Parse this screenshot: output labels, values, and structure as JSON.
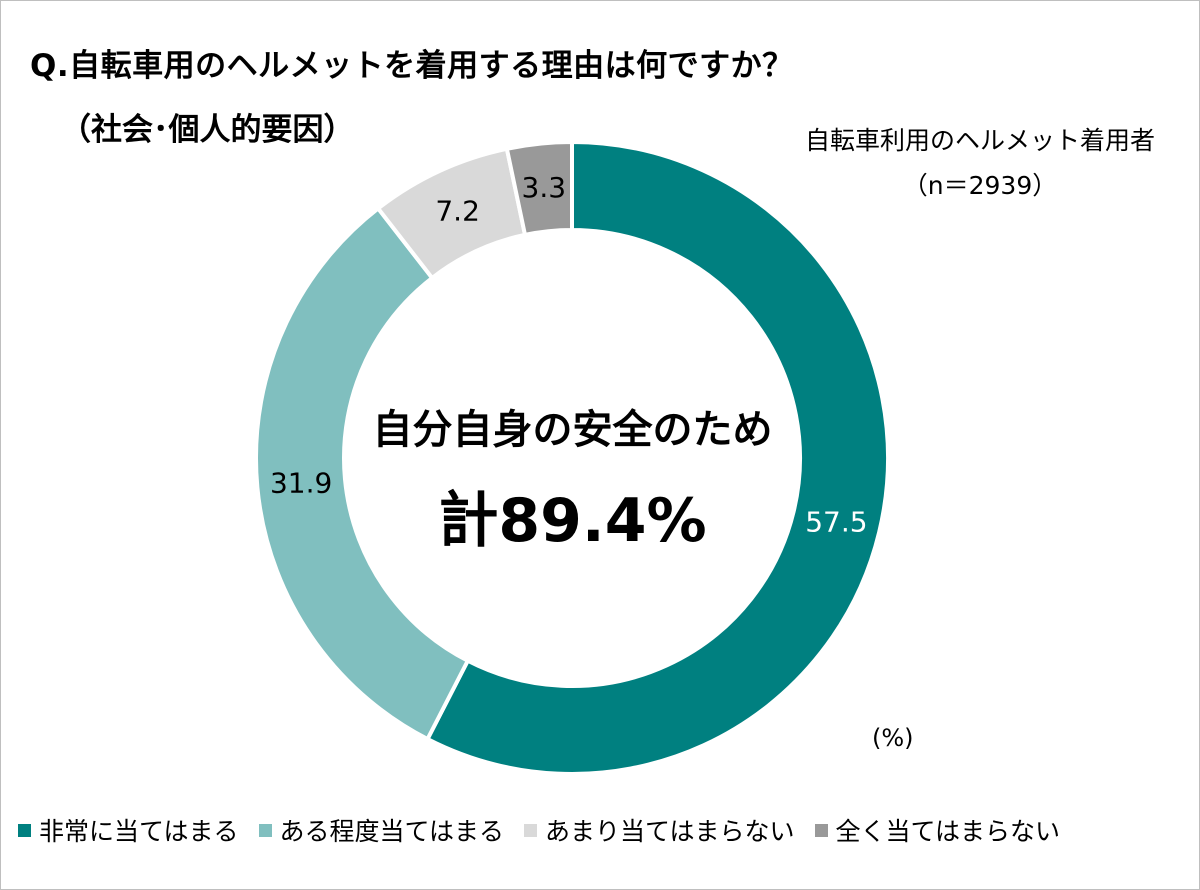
{
  "title_line1": "Q.自転車用のヘルメットを着用する理由は何ですか？",
  "title_line2": "（社会･個人的要因）",
  "sample_line1": "自転車利用のヘルメット着用者",
  "sample_line2": "（n＝2939）",
  "unit_label": "(%)",
  "center_line1": "自分自身の安全のため",
  "center_line2": "計89.4%",
  "chart_data": {
    "type": "pie",
    "donut": true,
    "categories": [
      "非常に当てはまる",
      "ある程度当てはまる",
      "あまり当てはまらない",
      "全く当てはまらない"
    ],
    "values": [
      57.5,
      31.9,
      7.2,
      3.3
    ],
    "labels": [
      "57.5",
      "31.9",
      "7.2",
      "3.3"
    ],
    "colors": [
      "#008080",
      "#80BFBF",
      "#D9D9D9",
      "#999999"
    ],
    "label_colors": [
      "#FFFFFF",
      "#000000",
      "#000000",
      "#000000"
    ],
    "legend_position": "bottom"
  }
}
